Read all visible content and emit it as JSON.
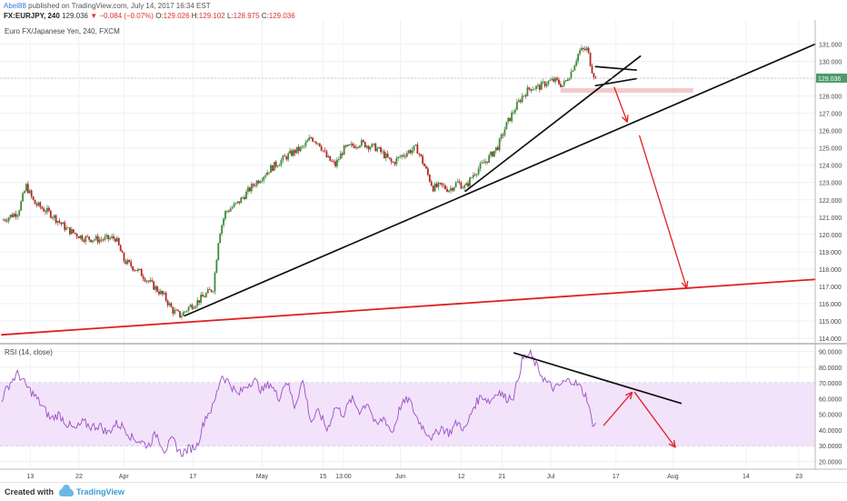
{
  "header": {
    "author": "Abel88",
    "published_text": "published on TradingView.com, July 14, 2017 16:34 EST",
    "symbol": "FX:EURJPY, 240",
    "last": "129.036",
    "change": "▼ −0.084 (−0.07%)",
    "o_label": "O:",
    "o_val": "129.026",
    "h_label": "H:",
    "h_val": "129.102",
    "l_label": "L:",
    "l_val": "128.975",
    "c_label": "C:",
    "c_val": "129.036"
  },
  "price_panel": {
    "title": "Euro FX/Japanese Yen, 240, FXCM",
    "last_price_badge": "129.036"
  },
  "rsi_panel": {
    "title": "RSI (14, close)"
  },
  "footer": {
    "created_with": "Created with",
    "brand": "TradingView"
  },
  "colors": {
    "up": "#3d8c3d",
    "down": "#b02a2a",
    "rsi_line": "#9b4fc3",
    "rsi_band": "#f2e3fb",
    "trendline": "#111111",
    "projection": "#e02020",
    "badge": "#4c9a6a",
    "zone": "#f3c9c9"
  },
  "chart_data": [
    {
      "type": "line",
      "name": "price",
      "ylim": [
        114,
        131.5
      ],
      "y_ticks": [
        "131.000",
        "130.000",
        "129.000",
        "128.000",
        "127.000",
        "126.000",
        "125.000",
        "124.000",
        "123.000",
        "122.000",
        "121.000",
        "120.000",
        "119.000",
        "118.000",
        "117.000",
        "116.000",
        "115.000",
        "114.000"
      ],
      "x_ticks": [
        "13",
        "22",
        "Apr",
        "17",
        "May",
        "15",
        "13:00",
        "Jun",
        "12",
        "21",
        "Jul",
        "17",
        "Aug",
        "14",
        "23"
      ],
      "x_range": [
        0,
        100
      ],
      "x_tick_positions": [
        3.5,
        9.5,
        15,
        23.5,
        32,
        39.5,
        42,
        49,
        56.5,
        61.5,
        67.5,
        75.5,
        82.5,
        91.5,
        98
      ],
      "series": [
        {
          "values": [
            [
              0,
              120.8
            ],
            [
              2,
              121.3
            ],
            [
              3,
              122.8
            ],
            [
              4,
              121.8
            ],
            [
              6,
              121.2
            ],
            [
              8,
              120.3
            ],
            [
              10,
              119.8
            ],
            [
              12,
              119.7
            ],
            [
              14,
              119.8
            ],
            [
              15,
              118.5
            ],
            [
              17,
              117.8
            ],
            [
              18,
              117.3
            ],
            [
              20,
              116.4
            ],
            [
              21,
              115.6
            ],
            [
              22,
              115.3
            ],
            [
              23,
              115.8
            ],
            [
              24,
              116.1
            ],
            [
              25,
              116.5
            ],
            [
              26,
              116.9
            ],
            [
              26.7,
              120.0
            ],
            [
              27.5,
              121.3
            ],
            [
              29,
              121.8
            ],
            [
              31,
              122.9
            ],
            [
              33,
              123.8
            ],
            [
              35,
              124.5
            ],
            [
              36,
              124.8
            ],
            [
              37,
              125.0
            ],
            [
              38,
              125.6
            ],
            [
              39,
              125.3
            ],
            [
              40,
              124.4
            ],
            [
              41,
              124.0
            ],
            [
              42,
              124.9
            ],
            [
              44,
              125.3
            ],
            [
              46,
              125.0
            ],
            [
              47,
              124.6
            ],
            [
              48,
              124.1
            ],
            [
              49,
              124.5
            ],
            [
              50,
              124.8
            ],
            [
              51,
              125.0
            ],
            [
              52,
              123.9
            ],
            [
              53,
              122.7
            ],
            [
              54,
              122.8
            ],
            [
              55,
              122.6
            ],
            [
              56,
              123.0
            ],
            [
              57,
              122.7
            ],
            [
              58,
              123.5
            ],
            [
              60,
              124.5
            ],
            [
              61,
              125.1
            ],
            [
              62,
              126.3
            ],
            [
              63,
              127.2
            ],
            [
              64,
              128.0
            ],
            [
              65,
              128.5
            ],
            [
              66,
              128.5
            ],
            [
              67,
              128.8
            ],
            [
              68,
              128.9
            ],
            [
              69,
              128.6
            ],
            [
              70,
              129.4
            ],
            [
              71,
              130.6
            ],
            [
              72,
              130.7
            ],
            [
              72.5,
              129.6
            ],
            [
              73,
              129.0
            ]
          ]
        }
      ]
    },
    {
      "type": "line",
      "name": "RSI",
      "ylim": [
        18,
        92
      ],
      "y_ticks": [
        "90.0000",
        "80.0000",
        "70.0000",
        "60.0000",
        "50.0000",
        "40.0000",
        "30.0000",
        "20.0000"
      ],
      "bands": [
        30,
        70
      ],
      "series": [
        {
          "values": [
            [
              0,
              60
            ],
            [
              1,
              70
            ],
            [
              2,
              76
            ],
            [
              3,
              68
            ],
            [
              4,
              62
            ],
            [
              5,
              55
            ],
            [
              6,
              47
            ],
            [
              7,
              50
            ],
            [
              8,
              44
            ],
            [
              9,
              40
            ],
            [
              10,
              45
            ],
            [
              11,
              42
            ],
            [
              12,
              43
            ],
            [
              13,
              38
            ],
            [
              14,
              44
            ],
            [
              15,
              42
            ],
            [
              16,
              35
            ],
            [
              17,
              33
            ],
            [
              18,
              30
            ],
            [
              19,
              38
            ],
            [
              20,
              27
            ],
            [
              21,
              34
            ],
            [
              22,
              25
            ],
            [
              23,
              28
            ],
            [
              24,
              30
            ],
            [
              25,
              48
            ],
            [
              26,
              55
            ],
            [
              27,
              75
            ],
            [
              28,
              70
            ],
            [
              29,
              62
            ],
            [
              30,
              68
            ],
            [
              31,
              72
            ],
            [
              32,
              65
            ],
            [
              33,
              70
            ],
            [
              34,
              60
            ],
            [
              35,
              72
            ],
            [
              36,
              55
            ],
            [
              37,
              72
            ],
            [
              38,
              45
            ],
            [
              39,
              52
            ],
            [
              40,
              40
            ],
            [
              41,
              55
            ],
            [
              42,
              50
            ],
            [
              43,
              60
            ],
            [
              44,
              52
            ],
            [
              45,
              58
            ],
            [
              46,
              42
            ],
            [
              47,
              48
            ],
            [
              48,
              38
            ],
            [
              49,
              55
            ],
            [
              50,
              60
            ],
            [
              51,
              48
            ],
            [
              52,
              40
            ],
            [
              53,
              35
            ],
            [
              54,
              42
            ],
            [
              55,
              38
            ],
            [
              56,
              45
            ],
            [
              57,
              40
            ],
            [
              58,
              55
            ],
            [
              59,
              62
            ],
            [
              60,
              58
            ],
            [
              61,
              65
            ],
            [
              62,
              60
            ],
            [
              63,
              62
            ],
            [
              64,
              85
            ],
            [
              65,
              88
            ],
            [
              66,
              78
            ],
            [
              67,
              70
            ],
            [
              68,
              66
            ],
            [
              69,
              70
            ],
            [
              70,
              72
            ],
            [
              71,
              68
            ],
            [
              72,
              60
            ],
            [
              72.5,
              46
            ],
            [
              73,
              43
            ]
          ]
        }
      ]
    }
  ]
}
